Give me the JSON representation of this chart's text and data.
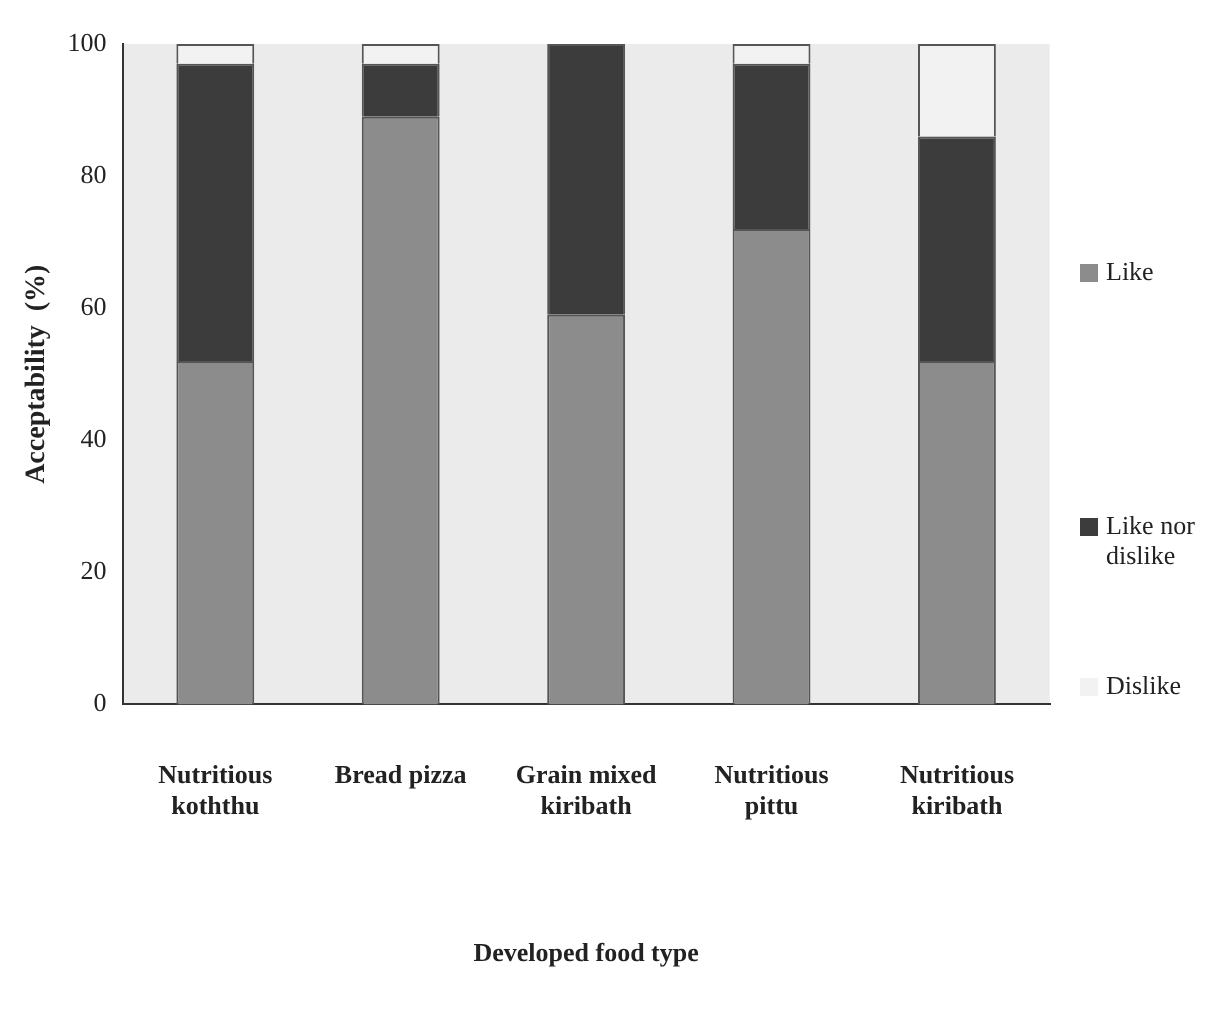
{
  "chart_data": {
    "type": "bar",
    "stacked": true,
    "xlabel": "Developed food type",
    "ylabel": "Acceptability  (%)",
    "categories": [
      "Nutritious koththu",
      "Bread pizza",
      "Grain mixed kiribath",
      "Nutritious pittu",
      "Nutritious kiribath"
    ],
    "series": [
      {
        "name": "Like",
        "color": "#8c8c8c",
        "values": [
          52,
          89,
          59,
          72,
          52
        ]
      },
      {
        "name": "Like nor dislike",
        "color": "#3c3c3c",
        "values": [
          45,
          8,
          41,
          25,
          34
        ]
      },
      {
        "name": "Dislike",
        "color": "#f2f2f2",
        "values": [
          3,
          3,
          0,
          3,
          14
        ]
      }
    ],
    "ylim": [
      0,
      100
    ],
    "yticks": [
      0,
      20,
      40,
      60,
      80,
      100
    ],
    "grid": false,
    "legend": "right"
  }
}
